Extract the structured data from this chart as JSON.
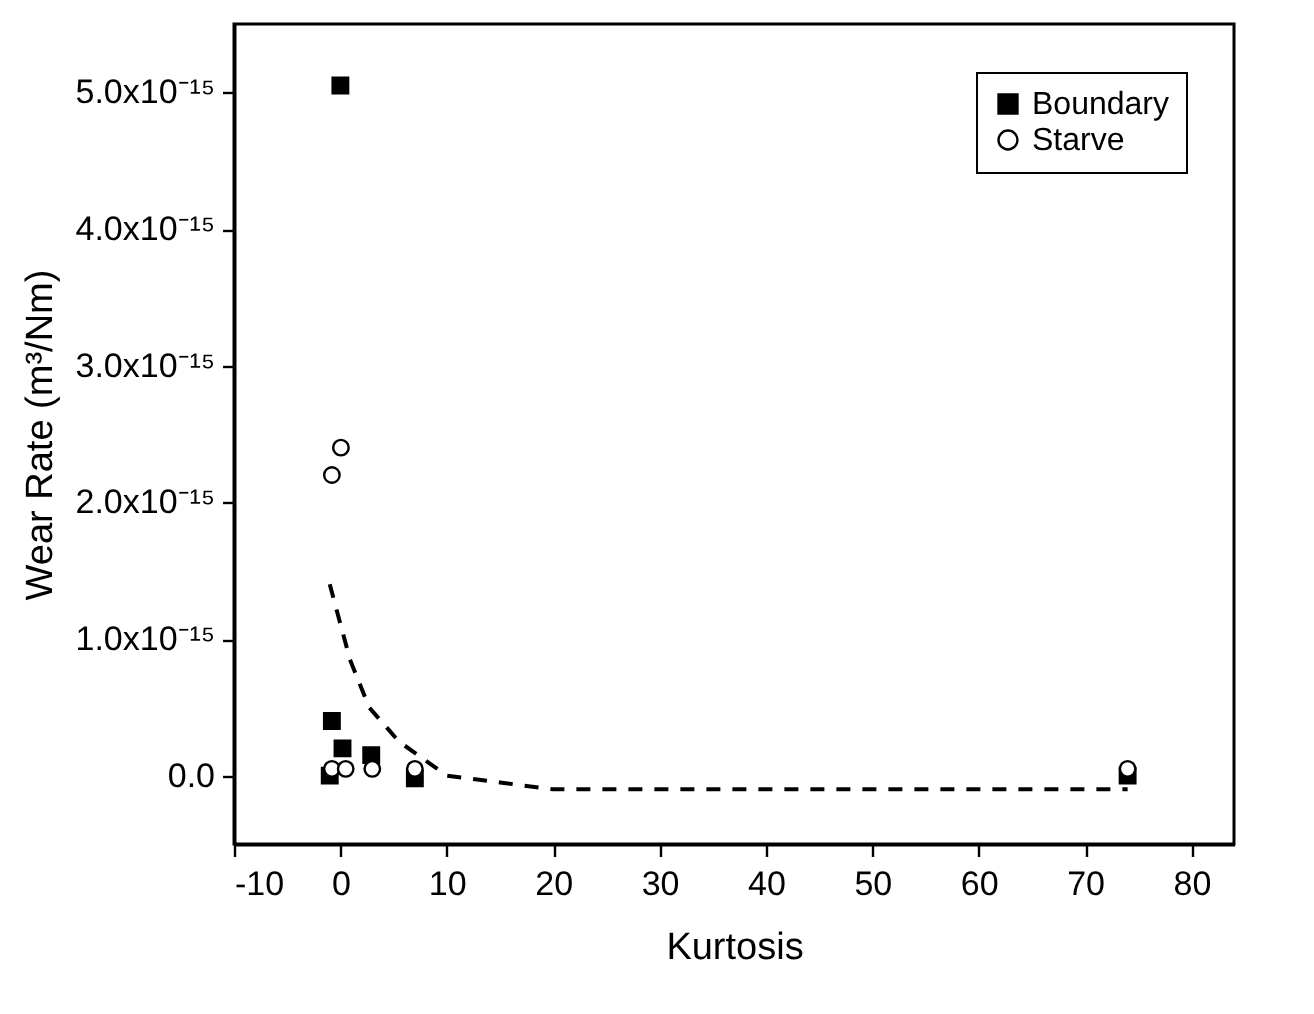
{
  "chart_data": {
    "type": "scatter",
    "xlabel": "Kurtosis",
    "ylabel": "Wear Rate (m³/Nm)",
    "xlim": [
      -10,
      84
    ],
    "xticks": [
      -10,
      0,
      10,
      20,
      30,
      40,
      50,
      60,
      70,
      80
    ],
    "ylim": [
      -5e-16,
      5.5e-15
    ],
    "yticks": [
      {
        "value": 0,
        "label": "0.0"
      },
      {
        "value": 1e-15,
        "label": "1.0x10⁻¹⁵"
      },
      {
        "value": 2e-15,
        "label": "2.0x10⁻¹⁵"
      },
      {
        "value": 3e-15,
        "label": "3.0x10⁻¹⁵"
      },
      {
        "value": 4e-15,
        "label": "4.0x10⁻¹⁵"
      },
      {
        "value": 5e-15,
        "label": "5.0x10⁻¹⁵"
      }
    ],
    "grid": false,
    "legend": "top right",
    "series": [
      {
        "name": "Boundary",
        "color": "#000000",
        "marker": "square",
        "x": [
          0,
          -0.8,
          0.2,
          2.9,
          -1,
          7,
          74
        ],
        "values": [
          5.05e-15,
          4e-16,
          2e-16,
          1.5e-16,
          0.0,
          -2e-17,
          0.0
        ]
      },
      {
        "name": "Starve",
        "color": "#000000",
        "marker": "circle",
        "x": [
          -0.8,
          0.05,
          -0.8,
          0.5,
          3,
          7,
          74
        ],
        "values": [
          2.2e-15,
          2.4e-15,
          5e-17,
          5e-17,
          5e-17,
          5e-17,
          5e-17
        ]
      },
      {
        "type": "line",
        "color": "#000000",
        "line_style": "dashed",
        "marker": "none",
        "x": [
          -1,
          0.9,
          2.7,
          5.5,
          10,
          15,
          20,
          30,
          50,
          74
        ],
        "values": [
          1.4e-15,
          8.5e-16,
          5e-16,
          2.5e-16,
          0.0,
          -5e-17,
          -1e-16,
          -1e-16,
          -1e-16,
          -1e-16
        ]
      }
    ]
  }
}
